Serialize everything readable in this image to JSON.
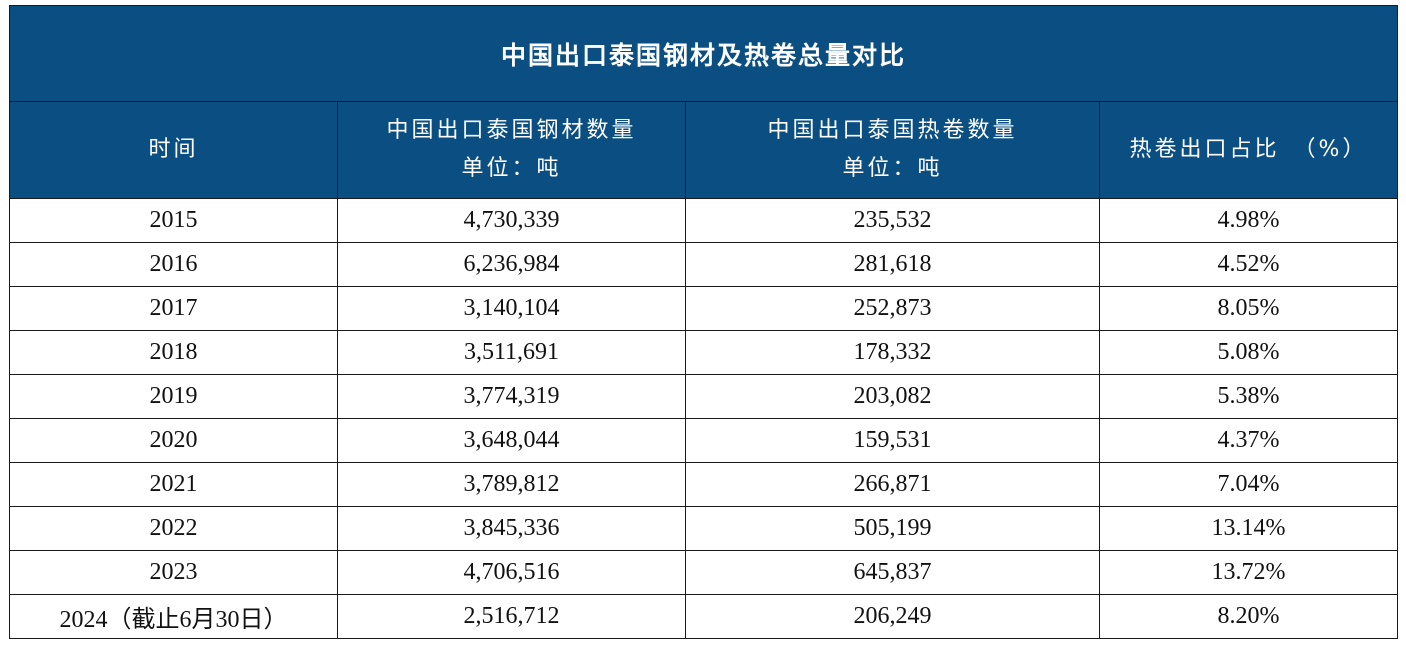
{
  "title": "中国出口泰国钢材及热卷总量对比",
  "headers": [
    {
      "line1": "时间",
      "line2": ""
    },
    {
      "line1": "中国出口泰国钢材数量",
      "line2": "单位：吨"
    },
    {
      "line1": "中国出口泰国热卷数量",
      "line2": "单位：吨"
    },
    {
      "line1": "热卷出口占比　（%）",
      "line2": ""
    }
  ],
  "rows": [
    {
      "year": "2015",
      "steel": "4,730,339",
      "hot_coil": "235,532",
      "ratio": "4.98%"
    },
    {
      "year": "2016",
      "steel": "6,236,984",
      "hot_coil": "281,618",
      "ratio": "4.52%"
    },
    {
      "year": "2017",
      "steel": "3,140,104",
      "hot_coil": "252,873",
      "ratio": "8.05%"
    },
    {
      "year": "2018",
      "steel": "3,511,691",
      "hot_coil": "178,332",
      "ratio": "5.08%"
    },
    {
      "year": "2019",
      "steel": "3,774,319",
      "hot_coil": "203,082",
      "ratio": "5.38%"
    },
    {
      "year": "2020",
      "steel": "3,648,044",
      "hot_coil": "159,531",
      "ratio": "4.37%"
    },
    {
      "year": "2021",
      "steel": "3,789,812",
      "hot_coil": "266,871",
      "ratio": "7.04%"
    },
    {
      "year": "2022",
      "steel": "3,845,336",
      "hot_coil": "505,199",
      "ratio": "13.14%"
    },
    {
      "year": "2023",
      "steel": "4,706,516",
      "hot_coil": "645,837",
      "ratio": "13.72%"
    },
    {
      "year": "2024（截止6月30日）",
      "steel": "2,516,712",
      "hot_coil": "206,249",
      "ratio": "8.20%"
    }
  ],
  "colors": {
    "header_bg": "#0b4f82",
    "header_text": "#ffffff",
    "border": "#1a1a1a"
  }
}
